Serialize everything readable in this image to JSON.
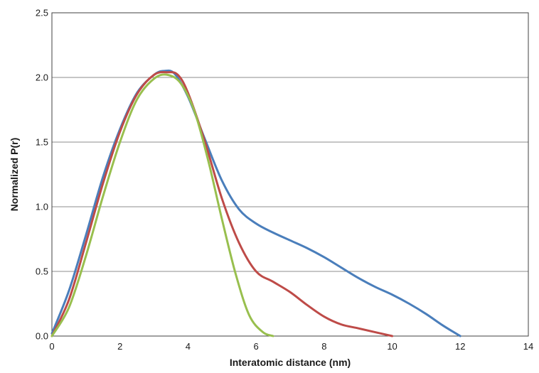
{
  "chart_data": {
    "type": "line",
    "title": "",
    "xlabel": "Interatomic distance (nm)",
    "ylabel": "Normalized P(r)",
    "xlim": [
      0,
      14
    ],
    "ylim": [
      0,
      2.5
    ],
    "x_ticks": [
      0,
      2,
      4,
      6,
      8,
      10,
      12,
      14
    ],
    "y_ticks": [
      0.0,
      0.5,
      1.0,
      1.5,
      2.0,
      2.5
    ],
    "x_tick_labels": [
      "0",
      "2",
      "4",
      "6",
      "8",
      "10",
      "12",
      "14"
    ],
    "y_tick_labels": [
      "0.0",
      "0.5",
      "1.0",
      "1.5",
      "2.0",
      "2.5"
    ],
    "grid": "horizontal",
    "legend": "none",
    "series": [
      {
        "color": "#4a7ebb",
        "x": [
          0,
          0.5,
          1.0,
          1.5,
          2.0,
          2.5,
          3.0,
          3.3,
          3.6,
          4.0,
          4.5,
          5.0,
          5.5,
          6.0,
          6.5,
          7.0,
          7.5,
          8.0,
          8.5,
          9.0,
          9.5,
          10.0,
          10.5,
          11.0,
          11.5,
          12.0
        ],
        "y": [
          0.02,
          0.35,
          0.78,
          1.23,
          1.6,
          1.88,
          2.02,
          2.05,
          2.03,
          1.85,
          1.52,
          1.2,
          0.98,
          0.87,
          0.8,
          0.74,
          0.68,
          0.61,
          0.53,
          0.45,
          0.38,
          0.32,
          0.25,
          0.17,
          0.08,
          0.0
        ]
      },
      {
        "color": "#be4b48",
        "x": [
          0,
          0.5,
          1.0,
          1.5,
          2.0,
          2.5,
          3.0,
          3.4,
          3.7,
          4.0,
          4.5,
          5.0,
          5.5,
          6.0,
          6.5,
          7.0,
          7.5,
          8.0,
          8.5,
          9.0,
          9.5,
          10.0
        ],
        "y": [
          0.0,
          0.28,
          0.72,
          1.18,
          1.58,
          1.87,
          2.02,
          2.04,
          2.02,
          1.88,
          1.5,
          1.06,
          0.72,
          0.5,
          0.42,
          0.34,
          0.24,
          0.15,
          0.09,
          0.06,
          0.03,
          0.0
        ]
      },
      {
        "color": "#98bf4e",
        "x": [
          0,
          0.5,
          1.0,
          1.5,
          2.0,
          2.5,
          3.0,
          3.4,
          3.8,
          4.2,
          4.6,
          5.0,
          5.4,
          5.8,
          6.2,
          6.5
        ],
        "y": [
          0.0,
          0.22,
          0.62,
          1.08,
          1.5,
          1.83,
          1.99,
          2.02,
          1.95,
          1.73,
          1.35,
          0.9,
          0.48,
          0.16,
          0.03,
          0.0
        ]
      }
    ]
  }
}
